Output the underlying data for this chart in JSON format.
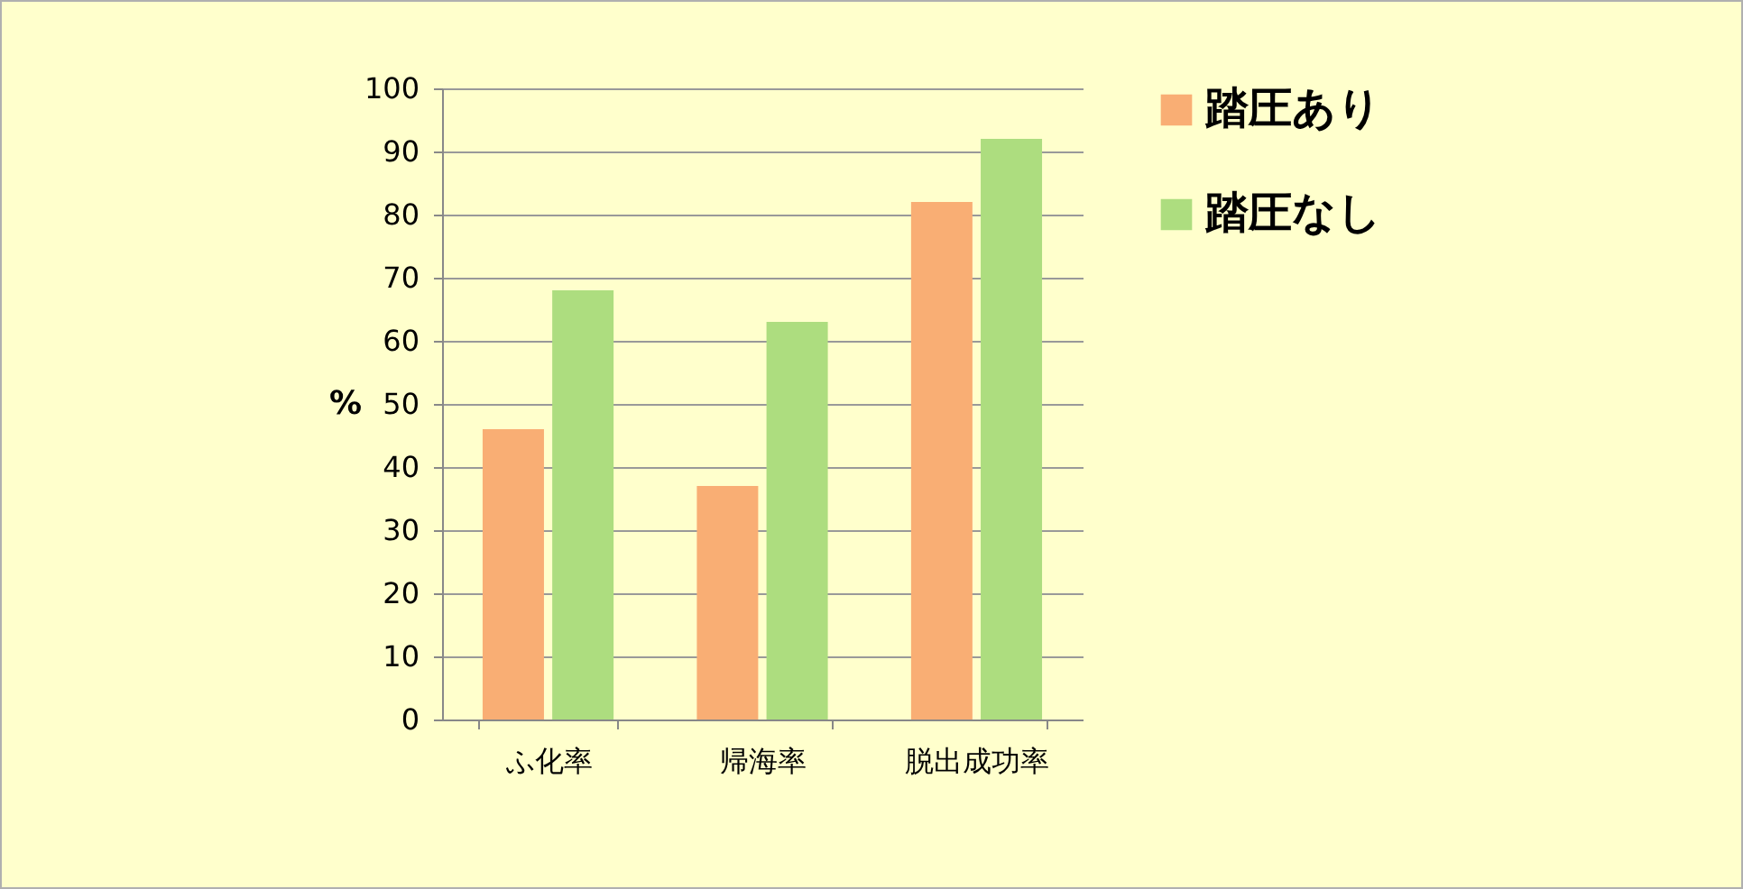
{
  "chart_data": {
    "type": "bar",
    "ylabel": "%",
    "categories": [
      "ふ化率",
      "帰海率",
      "脱出成功率"
    ],
    "series": [
      {
        "name": "踏圧あり",
        "color": "#f9ae74",
        "values": [
          46,
          37,
          82
        ]
      },
      {
        "name": "踏圧なし",
        "color": "#addd7f",
        "values": [
          68,
          63,
          92
        ]
      }
    ],
    "ylim": [
      0,
      100
    ],
    "yticks": [
      0,
      10,
      20,
      30,
      40,
      50,
      60,
      70,
      80,
      90,
      100
    ],
    "grid": "y",
    "legend": "right"
  }
}
